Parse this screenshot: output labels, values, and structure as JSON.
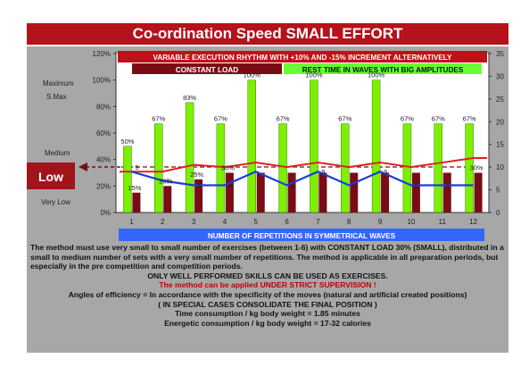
{
  "title": "Co-ordination Speed SMALL EFFORT",
  "banners": {
    "variable": "VARIABLE EXECUTION RHYTHM WITH +10% AND -15% INCREMENT ALTERNATIVELY",
    "constant": "CONSTANT LOAD",
    "rest": "REST TIME IN WAVES WITH BIG AMPLITUDES",
    "xaxis": "NUMBER OF REPETITIONS IN SYMMETRICAL WAVES"
  },
  "levels": {
    "maximum": "Maximum",
    "smax": "S.Max",
    "medium": "Medium",
    "low": "Low",
    "very_low": "Very Low"
  },
  "colors": {
    "title_bg": "#b5121b",
    "panel_bg": "#a7a7a7",
    "green_bar": "#7cf000",
    "dark_red_bar": "#7a0c16",
    "red_line": "#e02020",
    "blue_line": "#1a3fd8",
    "rest_banner": "#66ff33",
    "xaxis_banner": "#3366ff",
    "low_box": "#a0141c"
  },
  "chart_data": {
    "type": "bar",
    "categories": [
      "1",
      "2",
      "3",
      "4",
      "5",
      "6",
      "7",
      "8",
      "9",
      "10",
      "11",
      "12"
    ],
    "ylim_left": [
      0,
      120
    ],
    "ylim_right": [
      0,
      35
    ],
    "left_ticks": [
      "0%",
      "20%",
      "40%",
      "60%",
      "80%",
      "100%",
      "120%"
    ],
    "right_ticks": [
      "0",
      "5",
      "10",
      "15",
      "20",
      "25",
      "30",
      "35"
    ],
    "series": [
      {
        "values": [
          50,
          67,
          83,
          67,
          100,
          67,
          100,
          67,
          100,
          67,
          67,
          67
        ],
        "labels": [
          "50%",
          "67%",
          "83%",
          "67%",
          "100%",
          "67%",
          "100%",
          "67%",
          "100%",
          "67%",
          "67%",
          "67%"
        ]
      },
      {
        "values": [
          15,
          20,
          25,
          30,
          30,
          30,
          30,
          30,
          30,
          30,
          30,
          30
        ],
        "labels": [
          "15%",
          "20%",
          "25%",
          "30%",
          "",
          "",
          "",
          "",
          "",
          "",
          "",
          "30%"
        ]
      },
      {
        "axis": "right",
        "values": [
          9,
          9,
          10.5,
          10,
          11,
          10,
          11,
          10,
          11,
          10,
          11,
          12
        ],
        "labels": [
          "9",
          "",
          "",
          "",
          "",
          "",
          "",
          "",
          "",
          "",
          "",
          ""
        ]
      },
      {
        "axis": "right",
        "values": [
          9,
          7,
          6,
          6,
          9,
          6,
          9,
          6,
          9,
          6,
          6,
          6
        ],
        "labels": [
          "",
          "7",
          "6",
          "6",
          "",
          "6",
          "9",
          "6",
          "9",
          "6",
          "6",
          "6"
        ]
      }
    ]
  },
  "description": {
    "para1": "The method must use very small to small number of exercises (between 1-6) with CONSTANT LOAD 30% (SMALL), distributed in a small to medium number of sets with a very small number of repetitions. The method is applicable in all preparation periods, but especially in the pre competition and competition periods.",
    "line_skills": "ONLY WELL PERFORMED SKILLS CAN BE USED AS EXERCISES.",
    "line_supervision": "The method can be applied UNDER STRICT SUPERVISION !",
    "line_angles": "Angles of efficiency = In accordance with the specificity of the moves  (natural and artificial created positions)",
    "line_special": "( IN SPECIAL CASES CONSOLIDATE THE FINAL POSITION )",
    "line_time": "Time consumption /  kg body weight =  1.85     minutes",
    "line_energy": "Energetic consumption / kg body weight =  17-32  calories"
  }
}
